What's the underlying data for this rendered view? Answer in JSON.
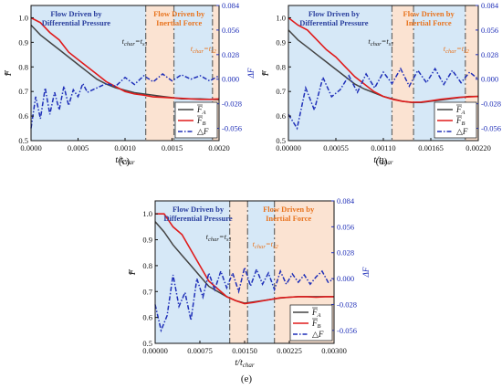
{
  "colors": {
    "blue_region": "#d6e8f7",
    "orange_region": "#fbe3d2",
    "series_A": "#444444",
    "series_B": "#e01b1b",
    "series_dF": "#1f2fb8",
    "label_blue": "#2a3f9e",
    "label_orange": "#e8741f",
    "vline": "#666666"
  },
  "chart_data": [
    {
      "panel": "(c)",
      "type": "line",
      "xlabel": "t/t_char",
      "ylabel": "F",
      "y2label": "ΔF",
      "xlim": [
        0,
        0.002
      ],
      "ylim": [
        0.5,
        1.05
      ],
      "y2lim": [
        -0.07,
        0.084
      ],
      "xticks": [
        "0.0000",
        "0.0005",
        "0.0010",
        "0.0015",
        "0.0020"
      ],
      "yticks": [
        "0.5",
        "0.6",
        "0.7",
        "0.8",
        "0.9",
        "1.0"
      ],
      "y2ticks": [
        "-0.056",
        "-0.028",
        "0.000",
        "0.028",
        "0.056",
        "0.084"
      ],
      "t1": 0.00122,
      "t2": 0.00193,
      "orange_start": 0.00122,
      "orange_end": 0.00152,
      "region_labels": {
        "left": [
          "Flow Driven by",
          "Differential Pressure"
        ],
        "right": [
          "Flow Driven by",
          "Inertial Force"
        ]
      },
      "annotations": {
        "t1": "t_char=ts1",
        "t2": "t_char=ts2"
      },
      "series": [
        {
          "name": "F_A",
          "axis": "left",
          "x": [
            0,
            0.0001,
            0.0002,
            0.0003,
            0.0004,
            0.0005,
            0.0006,
            0.0007,
            0.0008,
            0.0009,
            0.001,
            0.0011,
            0.0012,
            0.0013,
            0.0014,
            0.0015,
            0.0016,
            0.0017,
            0.0018,
            0.0019,
            0.002
          ],
          "values": [
            0.97,
            0.93,
            0.9,
            0.87,
            0.84,
            0.81,
            0.78,
            0.75,
            0.73,
            0.715,
            0.705,
            0.695,
            0.69,
            0.685,
            0.68,
            0.675,
            0.67,
            0.67,
            0.67,
            0.668,
            0.667
          ]
        },
        {
          "name": "F_B",
          "axis": "left",
          "x": [
            0,
            0.0001,
            0.0002,
            0.0003,
            0.0004,
            0.0005,
            0.0006,
            0.0007,
            0.0008,
            0.0009,
            0.001,
            0.0011,
            0.0012,
            0.0013,
            0.0014,
            0.0015,
            0.0016,
            0.0017,
            0.0018,
            0.0019,
            0.002
          ],
          "values": [
            1.0,
            0.98,
            0.94,
            0.91,
            0.86,
            0.83,
            0.8,
            0.77,
            0.74,
            0.72,
            0.7,
            0.69,
            0.685,
            0.678,
            0.676,
            0.674,
            0.672,
            0.67,
            0.668,
            0.668,
            0.67
          ]
        },
        {
          "name": "ΔF",
          "axis": "right",
          "x": [
            0,
            5e-05,
            0.0001,
            0.00015,
            0.0002,
            0.00025,
            0.0003,
            0.00035,
            0.0004,
            0.00045,
            0.0005,
            0.00055,
            0.0006,
            0.0007,
            0.0008,
            0.0009,
            0.001,
            0.0011,
            0.0012,
            0.0013,
            0.0014,
            0.0015,
            0.0016,
            0.0017,
            0.0018,
            0.0019,
            0.002
          ],
          "values": [
            -0.056,
            -0.02,
            -0.045,
            -0.01,
            -0.04,
            -0.015,
            -0.035,
            -0.008,
            -0.03,
            -0.012,
            -0.02,
            -0.005,
            -0.015,
            -0.01,
            -0.005,
            -0.008,
            0.002,
            -0.006,
            0.004,
            -0.003,
            0.006,
            -0.002,
            0.005,
            0.0,
            0.004,
            -0.002,
            0.004
          ]
        }
      ]
    },
    {
      "panel": "(d)",
      "type": "line",
      "xlabel": "t/t_char",
      "ylabel": "F",
      "y2label": "ΔF",
      "xlim": [
        0,
        0.0022
      ],
      "ylim": [
        0.5,
        1.05
      ],
      "y2lim": [
        -0.07,
        0.084
      ],
      "xticks": [
        "0.00000",
        "0.00055",
        "0.00110",
        "0.00165",
        "0.00220"
      ],
      "yticks": [
        "0.5",
        "0.6",
        "0.7",
        "0.8",
        "0.9",
        "1.0"
      ],
      "y2ticks": [
        "-0.056",
        "-0.028",
        "0.000",
        "0.028",
        "0.056",
        "0.084"
      ],
      "t1": 0.0012,
      "t2": 0.00205,
      "orange_start": 0.0012,
      "orange_end": 0.00145,
      "region_labels": {
        "left": [
          "Flow Driven by",
          "Differential Pressure"
        ],
        "right": [
          "Flow Driven by",
          "Inertial Force"
        ]
      },
      "annotations": {
        "t1": "t_char=ts1",
        "t2": "t_char=ts2"
      },
      "series": [
        {
          "name": "F_A",
          "axis": "left",
          "x": [
            0,
            0.00011,
            0.00022,
            0.00033,
            0.00044,
            0.00055,
            0.00066,
            0.00077,
            0.00088,
            0.00099,
            0.0011,
            0.00121,
            0.00132,
            0.00143,
            0.00154,
            0.00165,
            0.00176,
            0.00187,
            0.00198,
            0.00209,
            0.0022
          ],
          "values": [
            0.95,
            0.91,
            0.88,
            0.85,
            0.82,
            0.79,
            0.76,
            0.73,
            0.71,
            0.695,
            0.68,
            0.67,
            0.66,
            0.655,
            0.655,
            0.66,
            0.665,
            0.67,
            0.675,
            0.68,
            0.68
          ]
        },
        {
          "name": "F_B",
          "axis": "left",
          "x": [
            0,
            0.00011,
            0.00022,
            0.00033,
            0.00044,
            0.00055,
            0.00066,
            0.00077,
            0.00088,
            0.00099,
            0.0011,
            0.00121,
            0.00132,
            0.00143,
            0.00154,
            0.00165,
            0.00176,
            0.00187,
            0.00198,
            0.00209,
            0.0022
          ],
          "values": [
            1.0,
            0.97,
            0.95,
            0.91,
            0.87,
            0.84,
            0.8,
            0.76,
            0.73,
            0.7,
            0.68,
            0.668,
            0.66,
            0.656,
            0.657,
            0.662,
            0.668,
            0.672,
            0.676,
            0.678,
            0.68
          ]
        },
        {
          "name": "ΔF",
          "axis": "right",
          "x": [
            0,
            0.0001,
            0.0002,
            0.0003,
            0.0004,
            0.0005,
            0.0006,
            0.0007,
            0.0008,
            0.0009,
            0.001,
            0.0011,
            0.0012,
            0.0013,
            0.0014,
            0.0015,
            0.0016,
            0.0017,
            0.0018,
            0.0019,
            0.002,
            0.0021,
            0.0022
          ],
          "values": [
            -0.04,
            -0.056,
            -0.01,
            -0.035,
            0.002,
            -0.02,
            -0.012,
            0.004,
            -0.015,
            0.006,
            -0.01,
            0.008,
            -0.005,
            0.012,
            -0.008,
            0.01,
            -0.004,
            0.012,
            -0.006,
            0.01,
            -0.004,
            0.008,
            0.0
          ]
        }
      ]
    },
    {
      "panel": "(e)",
      "type": "line",
      "xlabel": "t/t_char",
      "ylabel": "F",
      "y2label": "ΔF",
      "xlim": [
        0,
        0.003
      ],
      "ylim": [
        0.5,
        1.05
      ],
      "y2lim": [
        -0.07,
        0.084
      ],
      "xticks": [
        "0.00000",
        "0.00075",
        "0.00150",
        "0.00225",
        "0.00300"
      ],
      "yticks": [
        "0.5",
        "0.6",
        "0.7",
        "0.8",
        "0.9",
        "1.0"
      ],
      "y2ticks": [
        "-0.056",
        "-0.028",
        "0.000",
        "0.028",
        "0.056",
        "0.084"
      ],
      "t1": 0.00125,
      "t2": 0.002,
      "orange_start": 0.00125,
      "orange_end": 0.00155,
      "region_labels": {
        "left": [
          "Flow Driven by",
          "Differential Pressure"
        ],
        "right": [
          "Flow Driven by",
          "Inertial Force"
        ]
      },
      "annotations": {
        "t1": "t_char=ts1",
        "t2": "t_char=ts2"
      },
      "series": [
        {
          "name": "F_A",
          "axis": "left",
          "x": [
            0,
            0.00015,
            0.0003,
            0.00045,
            0.0006,
            0.00075,
            0.0009,
            0.00105,
            0.0012,
            0.00135,
            0.0015,
            0.00165,
            0.0018,
            0.00195,
            0.0021,
            0.00225,
            0.0024,
            0.00255,
            0.0027,
            0.00285,
            0.003
          ],
          "values": [
            0.97,
            0.93,
            0.88,
            0.84,
            0.8,
            0.76,
            0.72,
            0.7,
            0.68,
            0.665,
            0.655,
            0.66,
            0.665,
            0.67,
            0.675,
            0.678,
            0.68,
            0.68,
            0.68,
            0.68,
            0.68
          ]
        },
        {
          "name": "F_B",
          "axis": "left",
          "x": [
            0,
            0.00015,
            0.0003,
            0.00045,
            0.0006,
            0.00075,
            0.0009,
            0.00105,
            0.0012,
            0.00135,
            0.0015,
            0.00165,
            0.0018,
            0.00195,
            0.0021,
            0.00225,
            0.0024,
            0.00255,
            0.0027,
            0.00285,
            0.003
          ],
          "values": [
            1.0,
            1.0,
            0.95,
            0.92,
            0.86,
            0.8,
            0.74,
            0.71,
            0.68,
            0.665,
            0.653,
            0.658,
            0.664,
            0.67,
            0.676,
            0.678,
            0.68,
            0.68,
            0.678,
            0.68,
            0.68
          ]
        },
        {
          "name": "ΔF",
          "axis": "right",
          "x": [
            0,
            0.0001,
            0.0002,
            0.0003,
            0.0004,
            0.0005,
            0.0006,
            0.0007,
            0.0008,
            0.0009,
            0.001,
            0.0011,
            0.0012,
            0.0013,
            0.0014,
            0.0015,
            0.0016,
            0.0017,
            0.0018,
            0.0019,
            0.002,
            0.0021,
            0.0022,
            0.0023,
            0.0024,
            0.0025,
            0.0026,
            0.0027,
            0.0028,
            0.0029,
            0.003
          ],
          "values": [
            -0.028,
            -0.056,
            -0.04,
            0.004,
            -0.03,
            -0.015,
            -0.045,
            0.0,
            -0.02,
            0.006,
            -0.012,
            0.008,
            -0.01,
            0.006,
            -0.014,
            0.012,
            -0.008,
            0.01,
            -0.006,
            0.006,
            -0.012,
            0.008,
            -0.006,
            0.005,
            -0.004,
            0.004,
            -0.006,
            0.002,
            0.008,
            -0.004,
            0.0
          ]
        }
      ]
    }
  ]
}
